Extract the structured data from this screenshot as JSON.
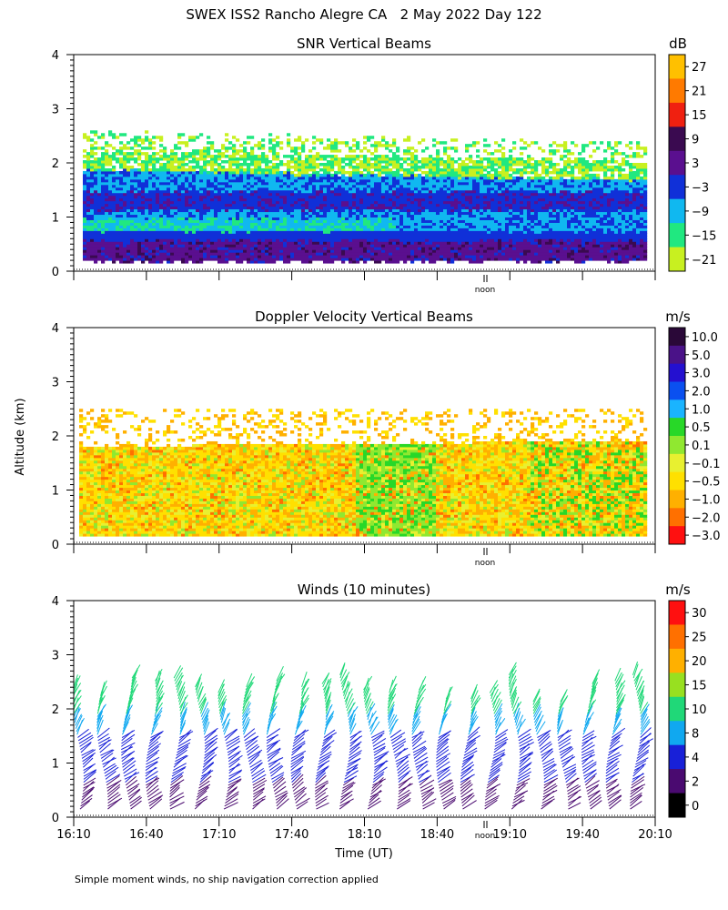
{
  "figure": {
    "title": "SWEX ISS2 Rancho Alegre CA   2 May 2022 Day 122",
    "ylabel_shared": "Altitude (km)",
    "xlabel": "Time (UT)",
    "footnote": "Simple moment winds, no ship navigation correction applied",
    "noon_label": "noon"
  },
  "chart_data": [
    {
      "type": "heatmap",
      "title": "SNR Vertical Beams",
      "colorbar_unit": "dB",
      "colorbar_labels": [
        "27",
        "21",
        "15",
        "9",
        "3",
        "−3",
        "−9",
        "−15",
        "−21"
      ],
      "colorbar_colors": [
        "#ffc000",
        "#ff7a00",
        "#f02010",
        "#3a0a50",
        "#5a0f8f",
        "#1030d8",
        "#10b8f0",
        "#20e880",
        "#c8f020"
      ],
      "ylim": [
        0,
        4
      ],
      "yticks": [
        "0",
        "1",
        "2",
        "3",
        "4"
      ],
      "x_range": [
        "16:10",
        "20:10"
      ],
      "layers": [
        {
          "name": "low band",
          "alt_km": [
            0.15,
            0.55
          ],
          "db": 9
        },
        {
          "name": "middle band",
          "alt_km": [
            0.55,
            1.1
          ],
          "db": -3
        },
        {
          "name": "green layer",
          "alt_km": [
            0.75,
            0.95
          ],
          "db": -15
        },
        {
          "name": "upper band",
          "alt_km": [
            1.1,
            1.8
          ],
          "db": -3
        },
        {
          "name": "top edge",
          "alt_km": [
            1.8,
            2.5
          ],
          "db": -15
        }
      ]
    },
    {
      "type": "heatmap",
      "title": "Doppler Velocity Vertical Beams",
      "colorbar_unit": "m/s",
      "colorbar_labels": [
        "10.0",
        "5.0",
        "3.0",
        "2.0",
        "1.0",
        "0.5",
        "0.1",
        "−0.1",
        "−0.5",
        "−1.0",
        "−2.0",
        "−3.0"
      ],
      "colorbar_colors": [
        "#2a0838",
        "#4a1288",
        "#2410d0",
        "#0a50f0",
        "#1ab4ff",
        "#28d828",
        "#90e830",
        "#e8f030",
        "#ffe000",
        "#ffb000",
        "#ff7000",
        "#ff1010"
      ],
      "ylim": [
        0,
        4
      ],
      "yticks": [
        "0",
        "1",
        "2",
        "3",
        "4"
      ],
      "x_range": [
        "16:10",
        "20:10"
      ],
      "dominant_value_range_ms": [
        -1.0,
        -0.1
      ]
    },
    {
      "type": "scatter",
      "title": "Winds (10 minutes)",
      "colorbar_unit": "m/s",
      "colorbar_labels": [
        "30",
        "25",
        "20",
        "15",
        "10",
        "8",
        "4",
        "2",
        "0"
      ],
      "colorbar_colors": [
        "#ff1010",
        "#ff7000",
        "#ffb000",
        "#98e020",
        "#20d878",
        "#10a8f0",
        "#1820d8",
        "#4a0a70",
        "#000000"
      ],
      "ylim": [
        0,
        4
      ],
      "yticks": [
        "0",
        "1",
        "2",
        "3",
        "4"
      ],
      "xticks": [
        "16:10",
        "16:40",
        "17:10",
        "17:40",
        "18:10",
        "18:40",
        "19:10",
        "19:40",
        "20:10"
      ],
      "profile_times": [
        "16:10",
        "16:20",
        "16:30",
        "16:40",
        "16:50",
        "17:00",
        "17:10",
        "17:20",
        "17:30",
        "17:40",
        "17:50",
        "18:00",
        "18:10",
        "18:20",
        "18:30",
        "18:40",
        "18:50",
        "19:00",
        "19:10",
        "19:20",
        "19:30",
        "19:40",
        "19:50",
        "20:00"
      ],
      "speed_bands_ms": [
        {
          "alt_km": [
            0.1,
            0.6
          ],
          "speed": 2
        },
        {
          "alt_km": [
            0.6,
            1.5
          ],
          "speed": 4
        },
        {
          "alt_km": [
            1.5,
            1.9
          ],
          "speed": 8
        },
        {
          "alt_km": [
            1.9,
            2.6
          ],
          "speed": 12
        }
      ]
    }
  ]
}
